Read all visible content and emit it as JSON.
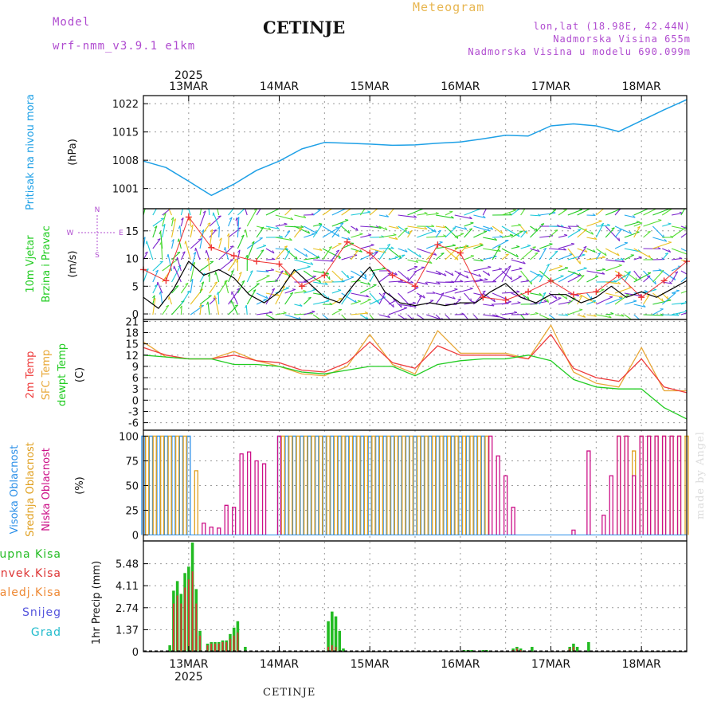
{
  "header": {
    "model_label": "Model",
    "model_name": "wrf-nmm_v3.9.1 e1km",
    "station": "CETINJE",
    "product": "Meteogram",
    "lonlat": "lon,lat (18.98E, 42.44N)",
    "altitude": "Nadmorska Visina 655m",
    "model_altitude": "Nadmorska Visina u modelu 690.099m"
  },
  "footer": {
    "station": "CETINJE",
    "credit": "made by Angel"
  },
  "colors": {
    "pressure": "#1ea0e6",
    "wind_speed": "#000000",
    "gust": "#ee3333",
    "t2m": "#ee3b3b",
    "tsfc": "#e8a838",
    "dewpt": "#22cc22",
    "cloud_high": "#2b8fe8",
    "cloud_mid": "#e0a020",
    "cloud_low": "#cc1188",
    "precip_total": "#22bb22",
    "precip_conv": "#dd3333",
    "precip_frz": "#ee8833",
    "snow": "#5555dd",
    "hail": "#22bbcc",
    "purple_label": "#b04cd0"
  },
  "chart_data": {
    "type": "line",
    "time_axis": {
      "year": "2025",
      "top_labels": [
        "13MAR",
        "14MAR",
        "15MAR",
        "16MAR",
        "17MAR",
        "18MAR"
      ],
      "bottom_labels": [
        "13MAR",
        "14MAR",
        "15MAR",
        "16MAR",
        "17MAR",
        "18MAR"
      ],
      "range_hours": [
        0,
        144
      ]
    },
    "panels": {
      "pressure": {
        "labels": [
          "Pritisak na nivou mora",
          "(hPa)"
        ],
        "yticks": [
          "1022",
          "1015",
          "1008",
          "1001"
        ],
        "ylim": [
          996,
          1024
        ],
        "series": [
          {
            "name": "Pritisak na nivou mora",
            "x": [
              0,
              6,
              12,
              18,
              24,
              30,
              36,
              42,
              48,
              54,
              60,
              66,
              72,
              78,
              84,
              90,
              96,
              102,
              108,
              114,
              120,
              126,
              132,
              138,
              144
            ],
            "y": [
              1007.8,
              1006.2,
              1002.8,
              999.3,
              1002.1,
              1005.5,
              1007.8,
              1010.8,
              1012.4,
              1012.2,
              1012.0,
              1011.7,
              1011.8,
              1012.2,
              1012.5,
              1013.3,
              1014.2,
              1014.0,
              1016.5,
              1017.0,
              1016.5,
              1015.1,
              1017.8,
              1020.5,
              1023.0
            ]
          }
        ]
      },
      "wind": {
        "labels": [
          "10m Vjetar",
          "Brzina i Pravac",
          "(m/s)"
        ],
        "compass_labels": [
          "N",
          "W",
          "E",
          "S"
        ],
        "yticks": [
          "15",
          "10",
          "5",
          "0"
        ],
        "ylim": [
          -1,
          19
        ],
        "series": [
          {
            "name": "Brzina",
            "x": [
              0,
              4,
              8,
              12,
              16,
              20,
              24,
              28,
              32,
              36,
              40,
              44,
              48,
              52,
              56,
              60,
              64,
              68,
              72,
              76,
              80,
              84,
              88,
              92,
              96,
              100,
              104,
              108,
              112,
              116,
              120,
              124,
              128,
              132,
              136,
              140,
              144
            ],
            "y": [
              3.0,
              1.0,
              4.5,
              9.5,
              7.0,
              8.0,
              6.5,
              3.5,
              2.0,
              4.0,
              8.0,
              5.5,
              3.0,
              2.0,
              5.5,
              8.5,
              4.0,
              2.0,
              1.5,
              2.0,
              1.5,
              2.0,
              2.0,
              4.0,
              5.5,
              3.0,
              2.0,
              3.5,
              3.5,
              2.0,
              3.0,
              5.0,
              3.0,
              4.0,
              3.0,
              4.5,
              6.0
            ]
          },
          {
            "name": "Udari",
            "x": [
              0,
              6,
              12,
              18,
              24,
              30,
              36,
              42,
              48,
              54,
              60,
              66,
              72,
              78,
              84,
              90,
              96,
              102,
              108,
              114,
              120,
              126,
              132,
              138,
              144
            ],
            "y": [
              8.0,
              6.0,
              17.5,
              12.0,
              10.5,
              9.5,
              9.0,
              5.0,
              7.0,
              13.0,
              11.0,
              7.0,
              5.0,
              12.5,
              11.0,
              3.0,
              2.5,
              4.0,
              6.0,
              3.5,
              4.0,
              7.0,
              3.0,
              6.0,
              9.5
            ]
          }
        ]
      },
      "temperature": {
        "labels": [
          "2m Temp",
          "SFC Temp",
          "dewpt Temp",
          "(C)"
        ],
        "yticks": [
          "21",
          "18",
          "15",
          "12",
          "9",
          "6",
          "3",
          "0",
          "-3",
          "-6"
        ],
        "ylim": [
          -8,
          21.5
        ],
        "series": [
          {
            "name": "2m Temp",
            "x": [
              0,
              6,
              12,
              18,
              24,
              30,
              36,
              42,
              48,
              54,
              60,
              66,
              72,
              78,
              84,
              90,
              96,
              102,
              108,
              114,
              120,
              126,
              132,
              138,
              144
            ],
            "y": [
              14.0,
              12.0,
              11.0,
              11.0,
              12.0,
              10.5,
              10.0,
              8.0,
              7.5,
              10.0,
              15.5,
              10.0,
              8.5,
              14.5,
              12.0,
              12.0,
              12.0,
              11.0,
              17.5,
              8.5,
              6.0,
              5.0,
              11.0,
              3.5,
              2.0
            ]
          },
          {
            "name": "SFC Temp",
            "x": [
              0,
              6,
              12,
              18,
              24,
              30,
              36,
              42,
              48,
              54,
              60,
              66,
              72,
              78,
              84,
              90,
              96,
              102,
              108,
              114,
              120,
              126,
              132,
              138,
              144
            ],
            "y": [
              15.5,
              11.5,
              11.0,
              11.0,
              13.0,
              10.5,
              9.0,
              7.0,
              6.5,
              9.0,
              17.5,
              9.5,
              7.0,
              18.5,
              12.5,
              12.5,
              12.5,
              11.0,
              20.0,
              7.5,
              4.5,
              3.5,
              14.0,
              2.5,
              2.5
            ]
          },
          {
            "name": "dewpt Temp",
            "x": [
              0,
              6,
              12,
              18,
              24,
              30,
              36,
              42,
              48,
              54,
              60,
              66,
              72,
              78,
              84,
              90,
              96,
              102,
              108,
              114,
              120,
              126,
              132,
              138,
              144
            ],
            "y": [
              12.0,
              11.5,
              11.0,
              11.0,
              9.5,
              9.5,
              9.0,
              7.5,
              7.0,
              8.0,
              9.0,
              9.0,
              6.5,
              9.5,
              10.5,
              11.0,
              11.0,
              12.0,
              10.5,
              5.5,
              3.5,
              3.0,
              3.0,
              -2.0,
              -5.0
            ]
          }
        ]
      },
      "clouds": {
        "labels": [
          "Visoka Oblacnost",
          "Srednja Oblacnost",
          "Niska Oblacnost",
          "(%)"
        ],
        "yticks": [
          "100",
          "75",
          "50",
          "25",
          "0"
        ],
        "ylim": [
          -6,
          106
        ],
        "series": [
          {
            "name": "Visoka Oblacnost",
            "x": [
              0,
              2,
              4,
              6,
              8,
              10,
              12,
              36,
              38,
              40,
              42,
              44,
              46,
              48,
              50,
              52,
              54,
              56,
              58,
              60,
              62,
              64,
              66,
              68,
              70,
              72,
              74,
              76,
              78,
              80,
              82,
              84,
              86,
              88,
              90
            ],
            "y": [
              100,
              100,
              100,
              100,
              100,
              100,
              100,
              100,
              100,
              100,
              100,
              100,
              100,
              100,
              100,
              100,
              100,
              100,
              100,
              100,
              100,
              100,
              100,
              100,
              100,
              100,
              100,
              100,
              100,
              100,
              100,
              100,
              100,
              100,
              100
            ]
          },
          {
            "name": "Srednja Oblacnost",
            "x": [
              1,
              3,
              5,
              7,
              9,
              11,
              14,
              37,
              39,
              41,
              43,
              45,
              47,
              49,
              51,
              53,
              55,
              57,
              59,
              61,
              63,
              65,
              67,
              69,
              71,
              73,
              75,
              77,
              79,
              81,
              83,
              85,
              87,
              89,
              91,
              126,
              128,
              130,
              132,
              134,
              136,
              138,
              140,
              142,
              144
            ],
            "y": [
              100,
              100,
              100,
              100,
              100,
              100,
              65,
              100,
              100,
              100,
              100,
              100,
              100,
              100,
              100,
              100,
              100,
              100,
              100,
              100,
              100,
              100,
              100,
              100,
              100,
              100,
              100,
              100,
              100,
              100,
              100,
              100,
              100,
              100,
              100,
              100,
              100,
              85,
              100,
              100,
              100,
              100,
              100,
              100,
              100
            ]
          },
          {
            "name": "Niska Oblacnost",
            "x": [
              16,
              18,
              20,
              22,
              24,
              26,
              28,
              30,
              32,
              36,
              92,
              94,
              96,
              98,
              114,
              118,
              122,
              124,
              126,
              128,
              130,
              132,
              134,
              136,
              138,
              140,
              142
            ],
            "y": [
              12,
              8,
              7,
              30,
              28,
              82,
              84,
              75,
              72,
              100,
              100,
              80,
              60,
              28,
              5,
              85,
              20,
              60,
              100,
              100,
              60,
              100,
              100,
              100,
              100,
              100,
              100
            ]
          }
        ]
      },
      "precipitation": {
        "labels": [
          "Ukupna Kisa",
          "Konvek.Kisa",
          "Zaledj.Kisa",
          "Snijeg",
          "Grad",
          "1hr Precip (mm)"
        ],
        "yticks": [
          "5.48",
          "4.11",
          "2.74",
          "1.37",
          "0"
        ],
        "ylim": [
          0,
          6.9
        ],
        "series": [
          {
            "name": "Ukupna Kisa",
            "x": [
              7,
              8,
              9,
              10,
              11,
              12,
              13,
              14,
              15,
              17,
              18,
              19,
              20,
              21,
              22,
              23,
              24,
              25,
              27,
              49,
              50,
              51,
              52,
              53,
              85,
              86,
              87,
              90,
              91,
              98,
              99,
              100,
              103,
              113,
              114,
              115,
              118
            ],
            "y": [
              0.4,
              3.8,
              4.4,
              3.6,
              4.9,
              5.3,
              6.8,
              3.9,
              1.3,
              0.5,
              0.6,
              0.6,
              0.6,
              0.7,
              0.7,
              1.1,
              1.5,
              1.9,
              0.3,
              1.9,
              2.5,
              2.2,
              1.3,
              0.2,
              0.1,
              0.1,
              0.1,
              0.1,
              0.1,
              0.2,
              0.3,
              0.2,
              0.3,
              0.3,
              0.5,
              0.3,
              0.6
            ]
          },
          {
            "name": "Konvek.Kisa",
            "x": [
              8,
              9,
              10,
              11,
              12,
              13,
              14,
              15,
              17,
              18,
              19,
              20,
              21,
              22,
              23,
              24,
              25,
              49,
              50,
              51,
              98,
              99,
              100,
              113,
              114
            ],
            "y": [
              3.0,
              3.5,
              3.0,
              4.0,
              4.5,
              5.0,
              3.0,
              1.0,
              0.4,
              0.5,
              0.5,
              0.5,
              0.6,
              0.6,
              0.8,
              1.0,
              1.2,
              0.3,
              0.4,
              0.3,
              0.1,
              0.2,
              0.1,
              0.2,
              0.3
            ]
          }
        ]
      }
    }
  }
}
